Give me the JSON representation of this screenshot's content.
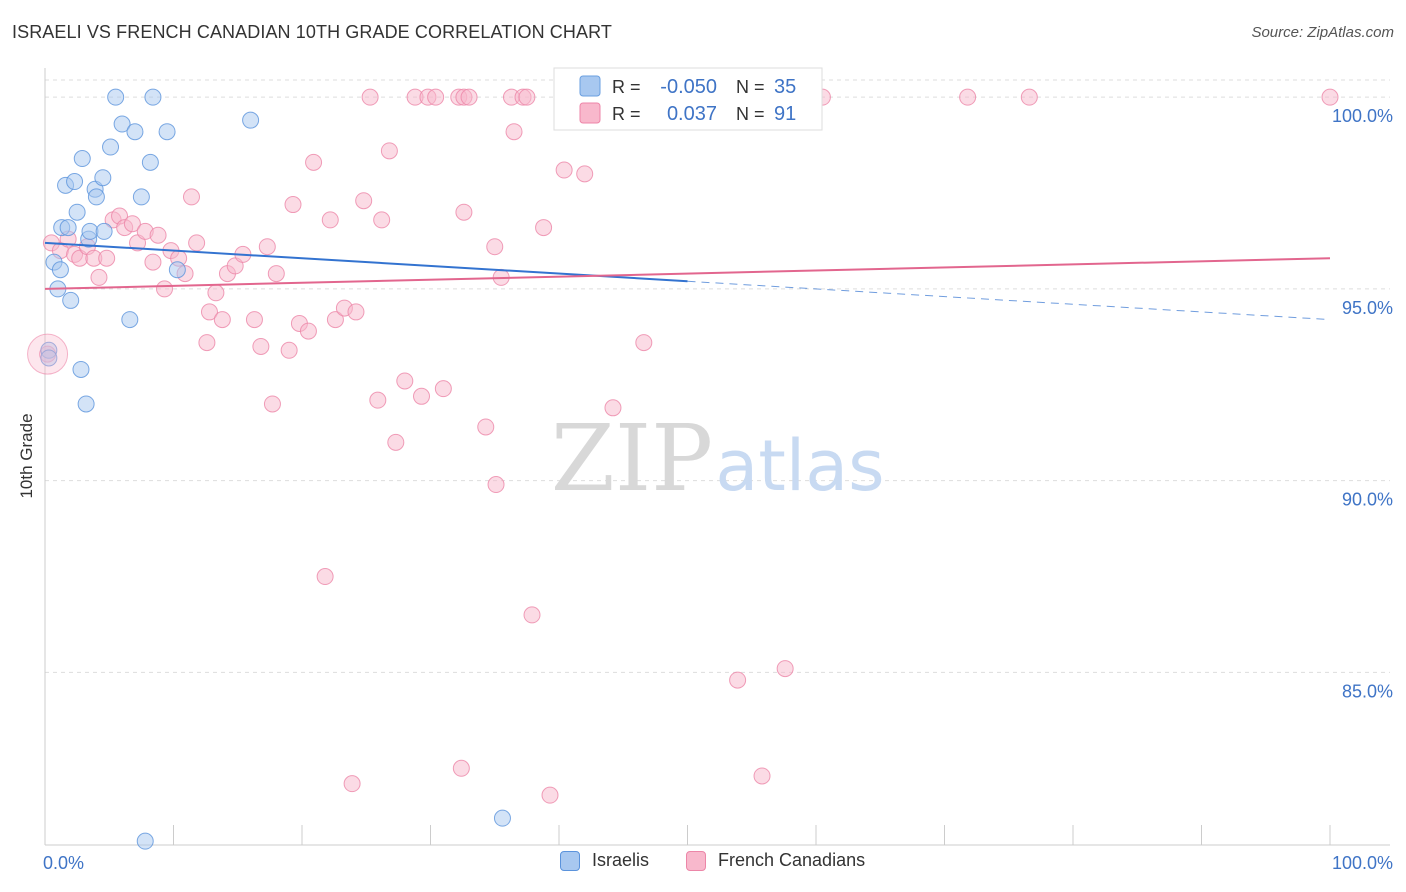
{
  "header": {
    "title": "ISRAELI VS FRENCH CANADIAN 10TH GRADE CORRELATION CHART",
    "source": "Source: ZipAtlas.com"
  },
  "watermark": {
    "zip": "ZIP",
    "atlas": "atlas"
  },
  "stats_legend": {
    "rows": [
      {
        "r_label": "R =",
        "r_value": "-0.050",
        "n_label": "N =",
        "n_value": "35",
        "color": "#a8c8f0",
        "stroke": "#6a9fe0"
      },
      {
        "r_label": "R =",
        "r_value": "0.037",
        "n_label": "N =",
        "n_value": "91",
        "color": "#f8b8cc",
        "stroke": "#ee85a8"
      }
    ]
  },
  "colors": {
    "israelis_fill": "#a8c8f0",
    "israelis_stroke": "#5b93dc",
    "israelis_line": "#3373d0",
    "french_fill": "#f8b8cc",
    "french_stroke": "#ec86a8",
    "french_line": "#e2668e",
    "axis_label": "#3f74c6",
    "grid": "#dddddd"
  },
  "chart_data": {
    "type": "scatter",
    "title": "ISRAELI VS FRENCH CANADIAN 10TH GRADE CORRELATION CHART",
    "xlabel": "",
    "ylabel": "10th Grade",
    "xlim": [
      0,
      100
    ],
    "ylim": [
      80.5,
      100.5
    ],
    "x_tick_labels": [
      "0.0%",
      "100.0%"
    ],
    "y_ticks": [
      85,
      90,
      95,
      100
    ],
    "y_tick_labels": [
      "85.0%",
      "90.0%",
      "95.0%",
      "100.0%"
    ],
    "grid": true,
    "legend": "bottom-center",
    "series": [
      {
        "name": "Israelis",
        "r": -0.05,
        "n": 35,
        "trend": {
          "x": [
            0,
            50
          ],
          "y": [
            96.2,
            95.2
          ],
          "dashed_extension_x": [
            50,
            100
          ],
          "dashed_extension_y": [
            95.2,
            94.2
          ]
        },
        "points": [
          [
            0.3,
            93.4
          ],
          [
            0.3,
            93.2
          ],
          [
            0.7,
            95.7
          ],
          [
            1.0,
            95.0
          ],
          [
            1.2,
            95.5
          ],
          [
            1.3,
            96.6
          ],
          [
            1.6,
            97.7
          ],
          [
            1.8,
            96.6
          ],
          [
            2.0,
            94.7
          ],
          [
            2.3,
            97.8
          ],
          [
            2.5,
            97.0
          ],
          [
            2.8,
            92.9
          ],
          [
            2.9,
            98.4
          ],
          [
            3.2,
            92.0
          ],
          [
            3.4,
            96.3
          ],
          [
            3.5,
            96.5
          ],
          [
            3.9,
            97.6
          ],
          [
            4.0,
            97.4
          ],
          [
            4.5,
            97.9
          ],
          [
            4.6,
            96.5
          ],
          [
            5.1,
            98.7
          ],
          [
            5.5,
            100.0
          ],
          [
            6.0,
            99.3
          ],
          [
            6.6,
            94.2
          ],
          [
            7.0,
            99.1
          ],
          [
            7.5,
            97.4
          ],
          [
            7.8,
            80.6
          ],
          [
            8.2,
            98.3
          ],
          [
            8.4,
            100.0
          ],
          [
            9.5,
            99.1
          ],
          [
            10.3,
            95.5
          ],
          [
            16.0,
            99.4
          ],
          [
            35.6,
            81.2
          ],
          [
            45.6,
            100.0
          ],
          [
            46.5,
            100.0
          ]
        ]
      },
      {
        "name": "French Canadians",
        "r": 0.037,
        "n": 91,
        "trend": {
          "x": [
            0,
            100
          ],
          "y": [
            95.0,
            95.8
          ]
        },
        "points": [
          [
            0.2,
            93.3
          ],
          [
            0.5,
            96.2
          ],
          [
            1.2,
            96.0
          ],
          [
            1.8,
            96.3
          ],
          [
            2.3,
            95.9
          ],
          [
            2.7,
            95.8
          ],
          [
            3.3,
            96.1
          ],
          [
            3.8,
            95.8
          ],
          [
            4.2,
            95.3
          ],
          [
            4.8,
            95.8
          ],
          [
            5.3,
            96.8
          ],
          [
            5.8,
            96.9
          ],
          [
            6.2,
            96.6
          ],
          [
            6.8,
            96.7
          ],
          [
            7.2,
            96.2
          ],
          [
            7.8,
            96.5
          ],
          [
            8.4,
            95.7
          ],
          [
            8.8,
            96.4
          ],
          [
            9.3,
            95.0
          ],
          [
            9.8,
            96.0
          ],
          [
            10.4,
            95.8
          ],
          [
            10.9,
            95.4
          ],
          [
            11.4,
            97.4
          ],
          [
            11.8,
            96.2
          ],
          [
            12.8,
            94.4
          ],
          [
            12.6,
            93.6
          ],
          [
            13.8,
            94.2
          ],
          [
            13.3,
            94.9
          ],
          [
            14.2,
            95.4
          ],
          [
            14.8,
            95.6
          ],
          [
            15.4,
            95.9
          ],
          [
            16.3,
            94.2
          ],
          [
            16.8,
            93.5
          ],
          [
            17.3,
            96.1
          ],
          [
            18.0,
            95.4
          ],
          [
            17.7,
            92.0
          ],
          [
            19.0,
            93.4
          ],
          [
            19.3,
            97.2
          ],
          [
            19.8,
            94.1
          ],
          [
            20.5,
            93.9
          ],
          [
            20.9,
            98.3
          ],
          [
            21.8,
            87.5
          ],
          [
            22.2,
            96.8
          ],
          [
            22.6,
            94.2
          ],
          [
            23.3,
            94.5
          ],
          [
            23.9,
            82.1
          ],
          [
            24.2,
            94.4
          ],
          [
            24.8,
            97.3
          ],
          [
            25.3,
            100.0
          ],
          [
            25.9,
            92.1
          ],
          [
            26.2,
            96.8
          ],
          [
            26.8,
            98.6
          ],
          [
            27.3,
            91.0
          ],
          [
            28.0,
            92.6
          ],
          [
            28.8,
            100.0
          ],
          [
            29.3,
            92.2
          ],
          [
            29.8,
            100.0
          ],
          [
            30.4,
            100.0
          ],
          [
            31.0,
            92.4
          ],
          [
            32.2,
            100.0
          ],
          [
            32.6,
            100.0
          ],
          [
            33.0,
            100.0
          ],
          [
            32.4,
            82.5
          ],
          [
            32.6,
            97.0
          ],
          [
            34.3,
            91.4
          ],
          [
            35.1,
            89.9
          ],
          [
            35.0,
            96.1
          ],
          [
            35.5,
            95.3
          ],
          [
            36.3,
            100.0
          ],
          [
            36.5,
            99.1
          ],
          [
            37.2,
            100.0
          ],
          [
            37.5,
            100.0
          ],
          [
            37.9,
            86.5
          ],
          [
            38.8,
            96.6
          ],
          [
            39.3,
            81.8
          ],
          [
            40.4,
            98.1
          ],
          [
            42.0,
            98.0
          ],
          [
            44.2,
            91.9
          ],
          [
            46.0,
            100.0
          ],
          [
            46.6,
            93.6
          ],
          [
            47.3,
            100.0
          ],
          [
            52.3,
            100.0
          ],
          [
            53.5,
            100.0
          ],
          [
            53.9,
            84.8
          ],
          [
            55.8,
            82.3
          ],
          [
            57.6,
            85.1
          ],
          [
            59.5,
            100.0
          ],
          [
            60.5,
            100.0
          ],
          [
            71.8,
            100.0
          ],
          [
            76.6,
            100.0
          ],
          [
            100.0,
            100.0
          ]
        ]
      }
    ]
  },
  "bottom_legend": {
    "items": [
      {
        "label": "Israelis"
      },
      {
        "label": "French Canadians"
      }
    ]
  }
}
